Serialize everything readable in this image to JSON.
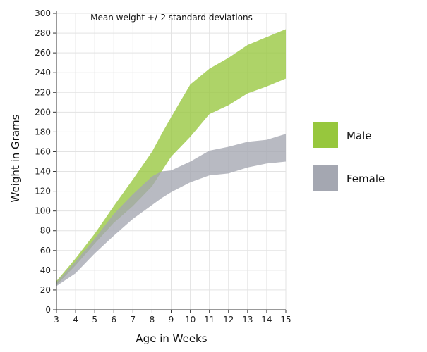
{
  "chart_data": {
    "type": "area",
    "title": "",
    "annotation": "Mean weight +/-2 standard deviations",
    "xlabel": "Age in Weeks",
    "ylabel": "Weight in Grams",
    "xlim": [
      3,
      15
    ],
    "ylim": [
      0,
      300
    ],
    "x_ticks": [
      3,
      4,
      5,
      6,
      7,
      8,
      9,
      10,
      11,
      12,
      13,
      14,
      15
    ],
    "y_ticks": [
      0,
      20,
      40,
      60,
      80,
      100,
      120,
      140,
      160,
      180,
      200,
      220,
      240,
      260,
      280,
      300
    ],
    "grid": true,
    "legend_position": "right",
    "series": [
      {
        "name": "Male",
        "color": "#97c73d",
        "x": [
          3,
          4,
          5,
          6,
          7,
          8,
          8.5,
          9,
          10,
          11,
          12,
          13,
          14,
          15
        ],
        "upper": [
          29,
          52,
          77,
          105,
          132,
          160,
          178,
          195,
          228,
          244,
          255,
          268,
          276,
          284
        ],
        "lower": [
          25,
          45,
          67,
          88,
          105,
          125,
          140,
          155,
          175,
          198,
          207,
          219,
          226,
          234
        ]
      },
      {
        "name": "Female",
        "color": "#a4a7b1",
        "x": [
          3,
          4,
          5,
          6,
          7,
          8,
          8.5,
          9,
          10,
          11,
          12,
          13,
          14,
          15
        ],
        "upper": [
          28,
          49,
          72,
          97,
          117,
          135,
          140,
          141,
          150,
          161,
          165,
          170,
          172,
          178
        ],
        "lower": [
          24,
          37,
          57,
          75,
          92,
          106,
          113,
          119,
          129,
          136,
          138,
          144,
          148,
          150
        ]
      }
    ]
  }
}
